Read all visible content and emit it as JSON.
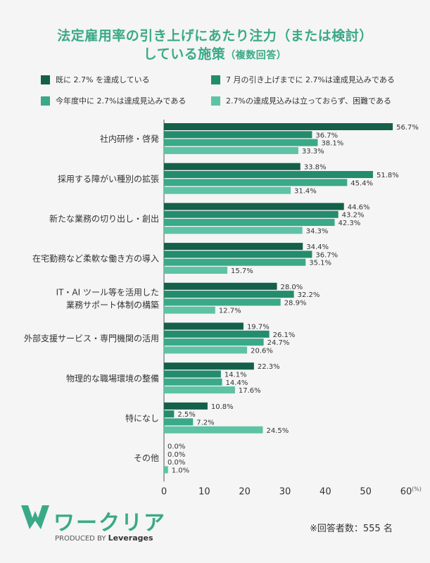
{
  "title_line1": "法定雇用率の引き上げにあたり注力（または検討）",
  "title_line2_main": "している施策",
  "title_line2_sub": "（複数回答）",
  "footnote": "※回答者数：555 名",
  "logo": {
    "name": "ワークリア",
    "produced_label": "PRODUCED BY",
    "produced_brand": "Leverages"
  },
  "colors": {
    "s1": "#14604a",
    "s2": "#238c6c",
    "s3": "#3aa987",
    "s4": "#5ec2a5"
  },
  "chart_data": {
    "type": "bar",
    "orientation": "horizontal",
    "categories": [
      [
        "社内研修・啓発"
      ],
      [
        "採用する障がい種別の拡張"
      ],
      [
        "新たな業務の切り出し・創出"
      ],
      [
        "在宅勤務など柔軟な働き方の導入"
      ],
      [
        "IT・AI ツール等を活用した",
        "業務サポート体制の構築"
      ],
      [
        "外部支援サービス・専門機関の活用"
      ],
      [
        "物理的な職場環境の整備"
      ],
      [
        "特になし"
      ],
      [
        "その他"
      ]
    ],
    "series": [
      {
        "name": "既に 2.7% を達成している",
        "values": [
          56.7,
          33.8,
          44.6,
          34.4,
          28.0,
          19.7,
          22.3,
          10.8,
          0.0
        ]
      },
      {
        "name": "7 月の引き上げまでに 2.7%は達成見込みである",
        "values": [
          36.7,
          51.8,
          43.2,
          36.7,
          32.2,
          26.1,
          14.1,
          2.5,
          0.0
        ]
      },
      {
        "name": "今年度中に 2.7%は達成見込みである",
        "values": [
          38.1,
          45.4,
          42.3,
          35.1,
          28.9,
          24.7,
          14.4,
          7.2,
          0.0
        ]
      },
      {
        "name": "2.7%の達成見込みは立っておらず、困難である",
        "values": [
          33.3,
          31.4,
          34.3,
          15.7,
          12.7,
          20.6,
          17.6,
          24.5,
          1.0
        ]
      }
    ],
    "xlim": [
      0,
      60
    ],
    "xticks": [
      0,
      10,
      20,
      30,
      40,
      50,
      60
    ],
    "xunit": "(%)",
    "legend_position": "top"
  }
}
